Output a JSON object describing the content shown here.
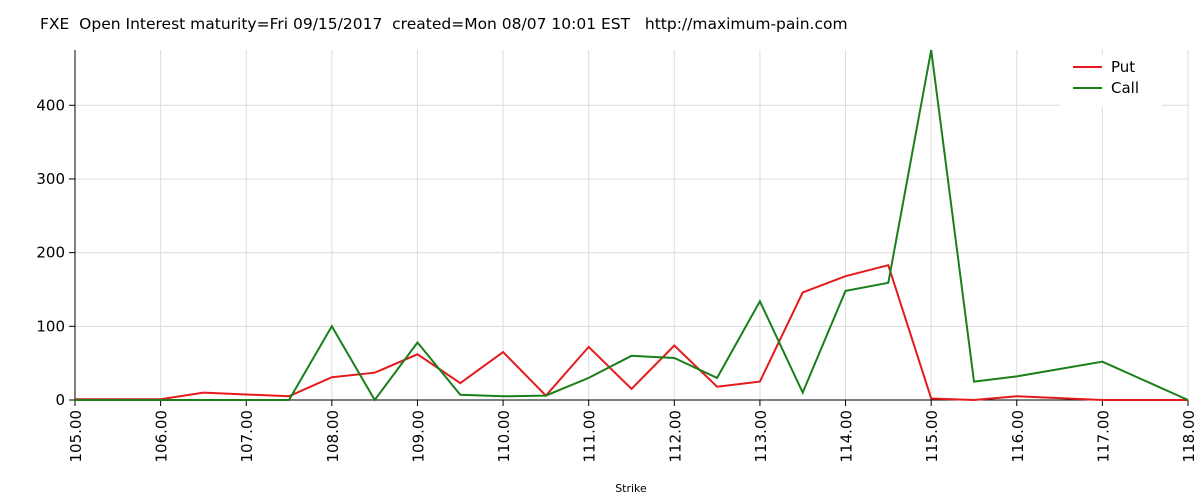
{
  "chart_data": {
    "type": "line",
    "title": "FXE  Open Interest maturity=Fri 09/15/2017  created=Mon 08/07 10:01 EST   http://maximum-pain.com",
    "xlabel": "Strike",
    "ylabel": "",
    "x": [
      105.0,
      106.0,
      106.5,
      107.5,
      108.0,
      108.5,
      109.0,
      109.5,
      110.0,
      110.5,
      111.0,
      111.5,
      112.0,
      112.5,
      113.0,
      113.5,
      114.0,
      114.5,
      115.0,
      115.5,
      116.0,
      117.0,
      118.0
    ],
    "series": [
      {
        "name": "Put",
        "color": "#e41a1c",
        "values": [
          1,
          1,
          10,
          5,
          31,
          37,
          62,
          23,
          65,
          6,
          72,
          15,
          74,
          18,
          25,
          146,
          168,
          183,
          2,
          0,
          5,
          0,
          0
        ]
      },
      {
        "name": "Call",
        "color": "#1a7f1a",
        "values": [
          0,
          0,
          0,
          0,
          100,
          0,
          78,
          7,
          5,
          6,
          30,
          60,
          57,
          30,
          134,
          10,
          148,
          159,
          475,
          25,
          32,
          52,
          0
        ]
      }
    ],
    "xticks": [
      "105.00",
      "106.00",
      "107.00",
      "108.00",
      "109.00",
      "110.00",
      "111.00",
      "112.00",
      "113.00",
      "114.00",
      "115.00",
      "116.00",
      "117.00",
      "118.00"
    ],
    "xtick_values": [
      105,
      106,
      107,
      108,
      109,
      110,
      111,
      112,
      113,
      114,
      115,
      116,
      117,
      118
    ],
    "yticks": [
      "0",
      "100",
      "200",
      "300",
      "400"
    ],
    "ytick_values": [
      0,
      100,
      200,
      300,
      400
    ],
    "xlim": [
      105,
      118
    ],
    "ylim": [
      0,
      475
    ],
    "grid": true,
    "legend": "top-right"
  }
}
